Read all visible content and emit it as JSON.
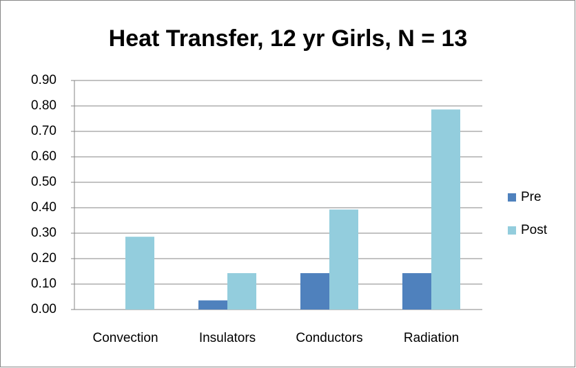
{
  "chart_data": {
    "type": "bar",
    "title": "Heat Transfer, 12 yr Girls, N = 13",
    "categories": [
      "Convection",
      "Insulators",
      "Conductors",
      "Radiation"
    ],
    "series": [
      {
        "name": "Pre",
        "color": "#4f81bd",
        "values": [
          0,
          0.036,
          0.143,
          0.143
        ]
      },
      {
        "name": "Post",
        "color": "#93cddd",
        "values": [
          0.286,
          0.143,
          0.393,
          0.786
        ]
      }
    ],
    "ylim": [
      0,
      0.9
    ],
    "yticks": [
      {
        "value": 0,
        "label": "0.00"
      },
      {
        "value": 0.1,
        "label": "0.10"
      },
      {
        "value": 0.2,
        "label": "0.20"
      },
      {
        "value": 0.3,
        "label": "0.30"
      },
      {
        "value": 0.4,
        "label": "0.40"
      },
      {
        "value": 0.5,
        "label": "0.50"
      },
      {
        "value": 0.6,
        "label": "0.60"
      },
      {
        "value": 0.7,
        "label": "0.70"
      },
      {
        "value": 0.8,
        "label": "0.80"
      },
      {
        "value": 0.9,
        "label": "0.90"
      }
    ],
    "grid": true,
    "legend": "right"
  }
}
